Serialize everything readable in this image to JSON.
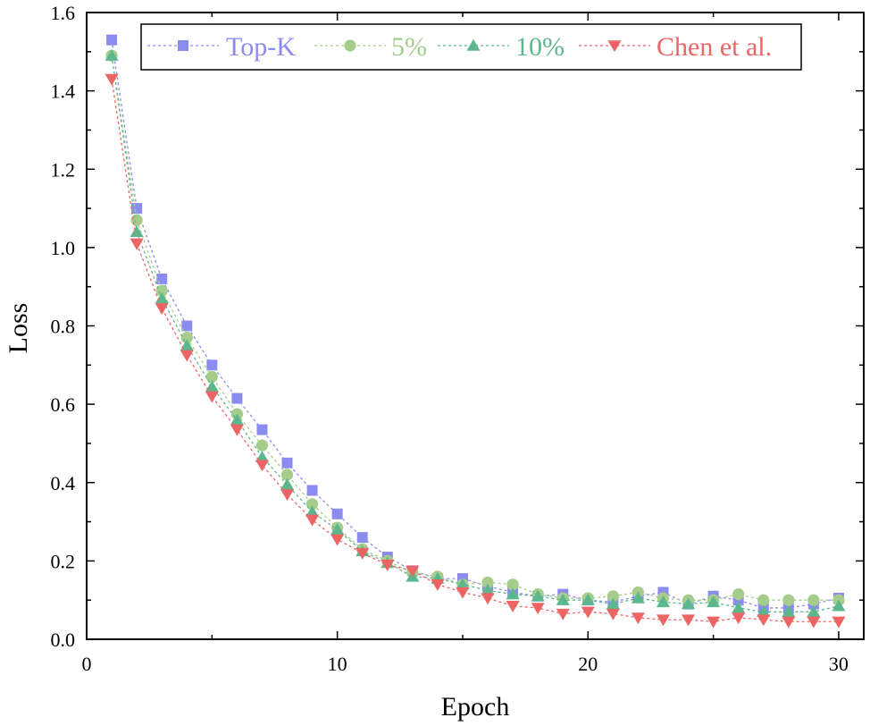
{
  "chart_data": {
    "type": "line",
    "xlabel": "Epoch",
    "ylabel": "Loss",
    "xlim": [
      0,
      31
    ],
    "ylim": [
      0,
      1.6
    ],
    "xticks": [
      "0",
      "10",
      "20",
      "30"
    ],
    "yticks": [
      "0.0",
      "0.2",
      "0.4",
      "0.6",
      "0.8",
      "1.0",
      "1.2",
      "1.4",
      "1.6"
    ],
    "legend_position": "top-right",
    "grid": false,
    "x": [
      1,
      2,
      3,
      4,
      5,
      6,
      7,
      8,
      9,
      10,
      11,
      12,
      13,
      14,
      15,
      16,
      17,
      18,
      19,
      20,
      21,
      22,
      23,
      24,
      25,
      26,
      27,
      28,
      29,
      30
    ],
    "series": [
      {
        "name": "Top-K",
        "color": "#8c8cf0",
        "marker": "square",
        "values": [
          1.53,
          1.1,
          0.92,
          0.8,
          0.7,
          0.615,
          0.535,
          0.45,
          0.38,
          0.32,
          0.26,
          0.21,
          0.175,
          0.155,
          0.155,
          0.135,
          0.12,
          0.11,
          0.115,
          0.1,
          0.095,
          0.11,
          0.12,
          0.09,
          0.11,
          0.1,
          0.08,
          0.08,
          0.09,
          0.105
        ]
      },
      {
        "name": "5%",
        "color": "#a6cc8c",
        "marker": "circle",
        "values": [
          1.49,
          1.07,
          0.89,
          0.77,
          0.67,
          0.575,
          0.495,
          0.42,
          0.345,
          0.285,
          0.23,
          0.2,
          0.17,
          0.16,
          0.14,
          0.145,
          0.14,
          0.115,
          0.105,
          0.105,
          0.11,
          0.12,
          0.105,
          0.1,
          0.1,
          0.115,
          0.1,
          0.1,
          0.1,
          0.1
        ]
      },
      {
        "name": "10%",
        "color": "#5cb88c",
        "marker": "triangle-up",
        "values": [
          1.49,
          1.04,
          0.87,
          0.75,
          0.645,
          0.56,
          0.465,
          0.395,
          0.325,
          0.28,
          0.225,
          0.195,
          0.16,
          0.155,
          0.14,
          0.125,
          0.115,
          0.11,
          0.1,
          0.1,
          0.09,
          0.105,
          0.095,
          0.09,
          0.095,
          0.08,
          0.07,
          0.07,
          0.07,
          0.085
        ]
      },
      {
        "name": "Chen et al.",
        "color": "#ec6464",
        "marker": "triangle-down",
        "values": [
          1.43,
          1.01,
          0.845,
          0.725,
          0.62,
          0.535,
          0.445,
          0.37,
          0.305,
          0.255,
          0.22,
          0.19,
          0.175,
          0.14,
          0.12,
          0.105,
          0.085,
          0.08,
          0.065,
          0.07,
          0.065,
          0.055,
          0.05,
          0.05,
          0.045,
          0.055,
          0.05,
          0.045,
          0.045,
          0.045
        ]
      }
    ]
  }
}
